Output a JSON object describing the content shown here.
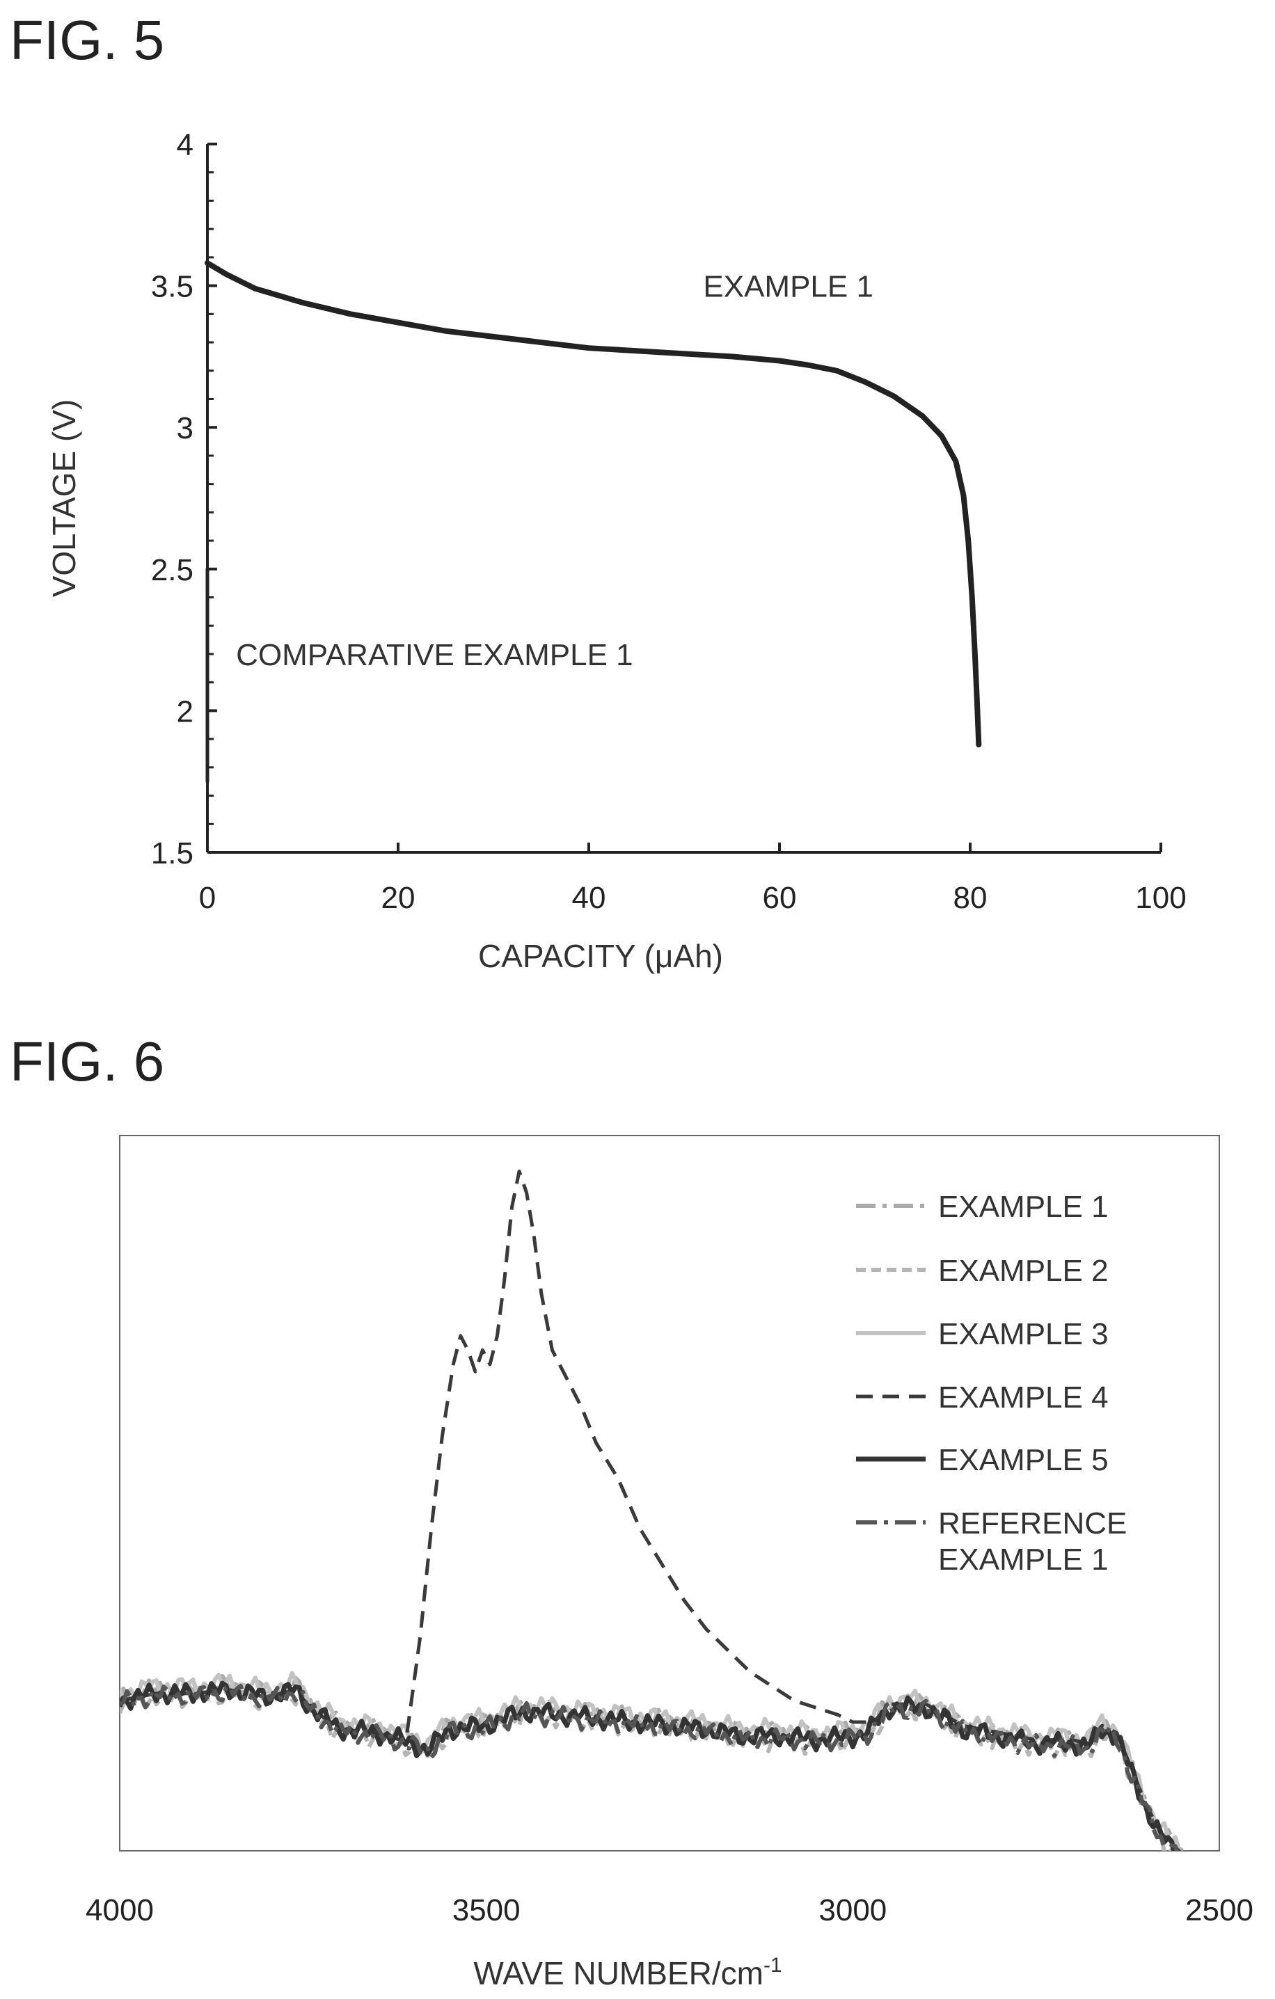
{
  "chart_data": [
    {
      "figure_label": "FIG. 5",
      "type": "line",
      "xlabel": "CAPACITY (μAh)",
      "ylabel": "VOLTAGE (V)",
      "xlim": [
        0,
        100
      ],
      "ylim": [
        1.5,
        4
      ],
      "xticks": [
        0,
        20,
        40,
        60,
        80,
        100
      ],
      "yticks": [
        1.5,
        2,
        2.5,
        3,
        3.5,
        4
      ],
      "xtick_labels": [
        "0",
        "20",
        "40",
        "60",
        "80",
        "100"
      ],
      "ytick_labels": [
        "1.5",
        "2",
        "2.5",
        "3",
        "3.5",
        "4"
      ],
      "grid": false,
      "series": [
        {
          "name": "EXAMPLE 1",
          "x": [
            0,
            2,
            5,
            10,
            15,
            20,
            25,
            30,
            35,
            40,
            45,
            50,
            55,
            60,
            63,
            66,
            69,
            72,
            75,
            77,
            78.5,
            79.3,
            79.8,
            80.2,
            80.5,
            80.7,
            80.9
          ],
          "y": [
            3.58,
            3.54,
            3.49,
            3.44,
            3.4,
            3.37,
            3.34,
            3.32,
            3.3,
            3.28,
            3.27,
            3.26,
            3.25,
            3.235,
            3.22,
            3.2,
            3.16,
            3.11,
            3.04,
            2.97,
            2.88,
            2.76,
            2.6,
            2.4,
            2.2,
            2.05,
            1.88
          ]
        },
        {
          "name": "COMPARATIVE EXAMPLE 1",
          "x": [
            0,
            0,
            0
          ],
          "y": [
            2.5,
            2.1,
            1.75
          ]
        }
      ],
      "annotations": [
        {
          "text": "EXAMPLE 1",
          "x": 52,
          "y": 3.5
        },
        {
          "text": "COMPARATIVE EXAMPLE 1",
          "x": 3,
          "y": 2.2
        }
      ]
    },
    {
      "figure_label": "FIG. 6",
      "type": "line",
      "xlabel": "WAVE NUMBER/cm",
      "xlabel_sup": "-1",
      "ylabel": "",
      "xlim": [
        4000,
        2500
      ],
      "xticks": [
        4000,
        3500,
        3000,
        2500
      ],
      "xtick_labels": [
        "4000",
        "3500",
        "3000",
        "2500"
      ],
      "ylim": [
        0,
        100
      ],
      "legend_position": "top-right",
      "series": [
        {
          "name": "EXAMPLE 1",
          "color": "#aaaaaa",
          "dash": "28 10 6 10",
          "width": 6,
          "offset": 0.6
        },
        {
          "name": "EXAMPLE 2",
          "color": "#b5b5b5",
          "dash": "14 8",
          "width": 6,
          "offset": -0.6
        },
        {
          "name": "EXAMPLE 3",
          "color": "#c2c2c2",
          "dash": "",
          "width": 6,
          "offset": 1.0
        },
        {
          "name": "EXAMPLE 4",
          "color": "#3a3a3a",
          "dash": "24 14",
          "width": 5,
          "peak": true
        },
        {
          "name": "EXAMPLE 5",
          "color": "#333333",
          "dash": "",
          "width": 7,
          "offset": 0
        },
        {
          "name": "REFERENCE EXAMPLE 1",
          "name_lines": [
            "REFERENCE",
            "EXAMPLE 1"
          ],
          "color": "#555555",
          "dash": "30 10 6 10",
          "width": 6,
          "offset": -0.3
        }
      ],
      "baseline": {
        "x": [
          4000,
          3950,
          3900,
          3850,
          3800,
          3760,
          3740,
          3700,
          3650,
          3600,
          3580,
          3550,
          3500,
          3450,
          3400,
          3350,
          3300,
          3250,
          3200,
          3150,
          3100,
          3050,
          3000,
          2980,
          2950,
          2900,
          2850,
          2800,
          2750,
          2700,
          2680,
          2660,
          2640,
          2620,
          2600,
          2580,
          2560,
          2550
        ],
        "y": [
          21,
          22,
          22,
          22.5,
          21.5,
          22.5,
          20,
          17,
          16.5,
          15,
          14,
          17,
          17.5,
          19.5,
          19,
          18.5,
          18,
          17.5,
          17,
          16,
          16,
          15.5,
          16,
          16.5,
          20,
          20,
          17,
          16,
          15,
          15,
          14.5,
          17,
          16,
          11,
          6,
          2,
          0,
          -1
        ]
      },
      "peak_series": {
        "x": [
          3610,
          3590,
          3575,
          3560,
          3545,
          3535,
          3525,
          3515,
          3505,
          3495,
          3485,
          3475,
          3465,
          3455,
          3445,
          3435,
          3425,
          3410,
          3390,
          3370,
          3350,
          3320,
          3290,
          3260,
          3230,
          3200,
          3170,
          3140,
          3110,
          3080,
          3050,
          3020,
          3000,
          2980
        ],
        "y": [
          15,
          30,
          45,
          58,
          68,
          72,
          70,
          67,
          70,
          68,
          72,
          80,
          90,
          95,
          92,
          86,
          78,
          70,
          66,
          62,
          57,
          52,
          45,
          40,
          35,
          31,
          28,
          25,
          23,
          21,
          20,
          19,
          18,
          18
        ]
      }
    }
  ]
}
